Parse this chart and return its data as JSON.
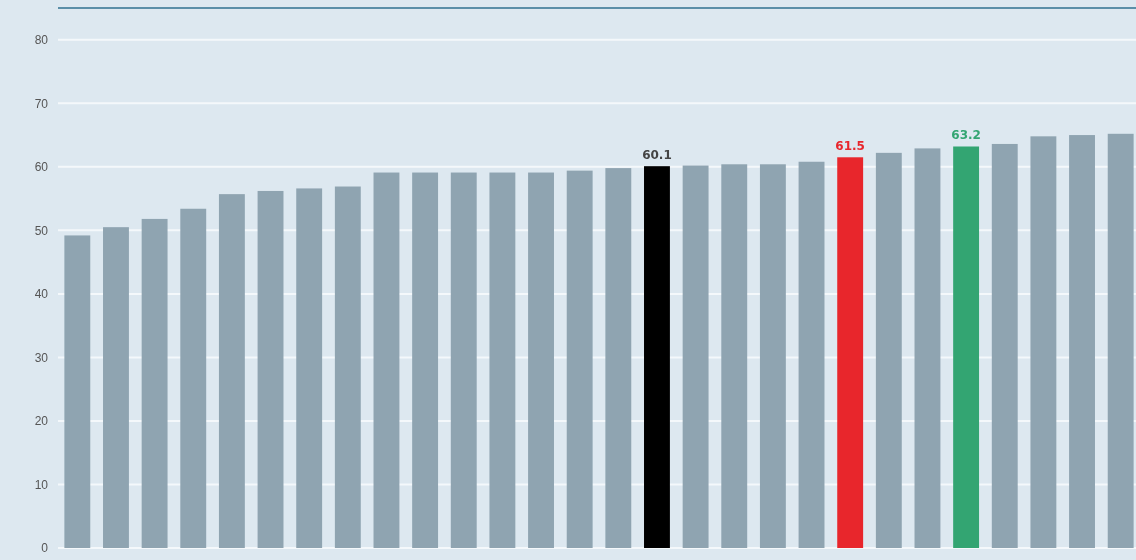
{
  "chart_data": {
    "type": "bar",
    "categories": [
      null,
      null,
      null,
      null,
      null,
      null,
      null,
      null,
      null,
      null,
      null,
      null,
      null,
      null,
      null,
      null,
      null,
      null,
      null,
      null,
      null,
      null,
      null,
      null,
      null,
      null,
      null,
      null
    ],
    "values": [
      49.2,
      50.5,
      51.8,
      53.4,
      55.7,
      56.2,
      56.6,
      56.9,
      59.1,
      59.1,
      59.1,
      59.1,
      59.1,
      59.4,
      59.8,
      60.1,
      60.2,
      60.4,
      60.4,
      60.8,
      61.5,
      62.2,
      62.9,
      63.2,
      63.6,
      64.8,
      65.0,
      65.2
    ],
    "colors": [
      "#8fa4b1",
      "#8fa4b1",
      "#8fa4b1",
      "#8fa4b1",
      "#8fa4b1",
      "#8fa4b1",
      "#8fa4b1",
      "#8fa4b1",
      "#8fa4b1",
      "#8fa4b1",
      "#8fa4b1",
      "#8fa4b1",
      "#8fa4b1",
      "#8fa4b1",
      "#8fa4b1",
      "#000000",
      "#8fa4b1",
      "#8fa4b1",
      "#8fa4b1",
      "#8fa4b1",
      "#e8262c",
      "#8fa4b1",
      "#8fa4b1",
      "#33a572",
      "#8fa4b1",
      "#8fa4b1",
      "#8fa4b1",
      "#8fa4b1"
    ],
    "value_labels": [
      null,
      null,
      null,
      null,
      null,
      null,
      null,
      null,
      null,
      null,
      null,
      null,
      null,
      null,
      null,
      "60.1",
      null,
      null,
      null,
      null,
      "61.5",
      null,
      null,
      "63.2",
      null,
      null,
      null,
      null
    ],
    "ylim": [
      0,
      85
    ],
    "yticks": [
      0,
      10,
      20,
      30,
      40,
      50,
      60,
      70,
      80
    ],
    "grid": "y"
  }
}
